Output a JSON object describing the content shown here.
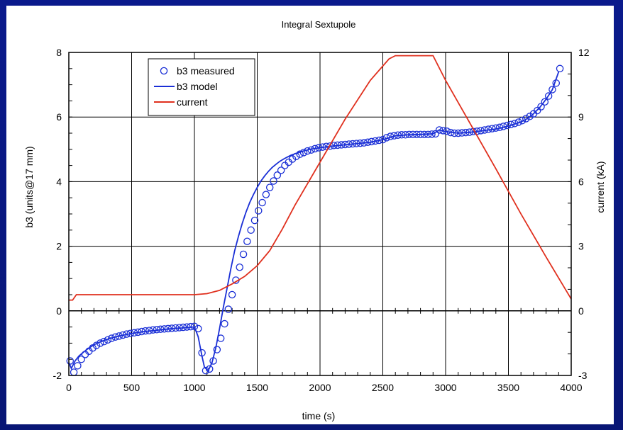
{
  "chart_data": {
    "type": "line",
    "title": "Integral Sextupole",
    "xlabel": "time (s)",
    "ylabel": "b3 (units@17 mm)",
    "y2label": "current (kA)",
    "xlim": [
      0,
      4000
    ],
    "ylim": [
      -2,
      8
    ],
    "y2lim": [
      -3,
      12
    ],
    "xticks": [
      0,
      500,
      1000,
      1500,
      2000,
      2500,
      3000,
      3500,
      4000
    ],
    "yticks": [
      -2,
      0,
      2,
      4,
      6,
      8
    ],
    "y2ticks": [
      -3,
      0,
      3,
      6,
      9,
      12
    ],
    "grid": true,
    "legend_position": "top-left",
    "series": [
      {
        "name": "b3 measured",
        "style": "markers",
        "color": "#1a2fd6",
        "x": [
          10,
          40,
          70,
          100,
          130,
          160,
          190,
          220,
          250,
          280,
          310,
          340,
          370,
          400,
          430,
          460,
          490,
          520,
          550,
          580,
          610,
          640,
          670,
          700,
          730,
          760,
          790,
          820,
          850,
          880,
          910,
          940,
          970,
          1000,
          1030,
          1060,
          1090,
          1120,
          1150,
          1180,
          1210,
          1240,
          1270,
          1300,
          1330,
          1360,
          1390,
          1420,
          1450,
          1480,
          1510,
          1540,
          1570,
          1600,
          1630,
          1660,
          1690,
          1720,
          1750,
          1780,
          1810,
          1840,
          1870,
          1900,
          1930,
          1960,
          1990,
          2020,
          2050,
          2080,
          2110,
          2140,
          2170,
          2200,
          2230,
          2260,
          2290,
          2320,
          2350,
          2380,
          2410,
          2440,
          2470,
          2500,
          2530,
          2560,
          2590,
          2620,
          2650,
          2680,
          2710,
          2740,
          2770,
          2800,
          2830,
          2860,
          2890,
          2920,
          2950,
          2980,
          3010,
          3040,
          3070,
          3100,
          3130,
          3160,
          3190,
          3220,
          3250,
          3280,
          3310,
          3340,
          3370,
          3400,
          3430,
          3460,
          3490,
          3520,
          3550,
          3580,
          3610,
          3640,
          3670,
          3700,
          3730,
          3760,
          3790,
          3820,
          3850,
          3880,
          3910
        ],
        "y": [
          -1.55,
          -1.9,
          -1.7,
          -1.5,
          -1.35,
          -1.25,
          -1.15,
          -1.07,
          -1.0,
          -0.95,
          -0.9,
          -0.85,
          -0.81,
          -0.78,
          -0.75,
          -0.72,
          -0.7,
          -0.68,
          -0.66,
          -0.64,
          -0.62,
          -0.61,
          -0.59,
          -0.58,
          -0.57,
          -0.56,
          -0.55,
          -0.54,
          -0.53,
          -0.52,
          -0.51,
          -0.5,
          -0.49,
          -0.48,
          -0.55,
          -1.3,
          -1.85,
          -1.8,
          -1.55,
          -1.2,
          -0.85,
          -0.4,
          0.05,
          0.5,
          0.95,
          1.35,
          1.75,
          2.15,
          2.5,
          2.8,
          3.1,
          3.35,
          3.6,
          3.82,
          4.02,
          4.2,
          4.35,
          4.5,
          4.6,
          4.7,
          4.78,
          4.85,
          4.9,
          4.95,
          4.98,
          5.02,
          5.05,
          5.07,
          5.09,
          5.1,
          5.12,
          5.13,
          5.14,
          5.15,
          5.16,
          5.17,
          5.18,
          5.19,
          5.2,
          5.22,
          5.24,
          5.26,
          5.28,
          5.3,
          5.36,
          5.4,
          5.42,
          5.44,
          5.45,
          5.45,
          5.46,
          5.46,
          5.46,
          5.46,
          5.46,
          5.46,
          5.47,
          5.48,
          5.6,
          5.58,
          5.56,
          5.52,
          5.5,
          5.5,
          5.51,
          5.52,
          5.53,
          5.55,
          5.56,
          5.58,
          5.6,
          5.62,
          5.64,
          5.66,
          5.68,
          5.71,
          5.74,
          5.77,
          5.8,
          5.84,
          5.89,
          5.95,
          6.02,
          6.1,
          6.2,
          6.32,
          6.47,
          6.65,
          6.85,
          7.05,
          7.5
        ]
      },
      {
        "name": "b3 model",
        "style": "line",
        "color": "#1a2fd6",
        "x": [
          0,
          20,
          50,
          80,
          110,
          150,
          200,
          250,
          300,
          350,
          400,
          450,
          500,
          550,
          600,
          650,
          700,
          750,
          800,
          850,
          900,
          950,
          1000,
          1030,
          1060,
          1080,
          1110,
          1140,
          1170,
          1200,
          1230,
          1260,
          1290,
          1320,
          1350,
          1380,
          1410,
          1440,
          1470,
          1500,
          1530,
          1560,
          1590,
          1620,
          1650,
          1680,
          1710,
          1740,
          1770,
          1800,
          1830,
          1860,
          1890,
          1920,
          1950,
          2000,
          2100,
          2200,
          2300,
          2400,
          2500,
          2600,
          2700,
          2800,
          2900,
          2950,
          3000,
          3100,
          3200,
          3300,
          3400,
          3500,
          3600,
          3650,
          3700,
          3750,
          3800,
          3850,
          3900
        ],
        "y": [
          -1.6,
          -1.78,
          -1.55,
          -1.4,
          -1.3,
          -1.18,
          -1.05,
          -0.96,
          -0.89,
          -0.83,
          -0.78,
          -0.74,
          -0.7,
          -0.67,
          -0.64,
          -0.62,
          -0.6,
          -0.58,
          -0.56,
          -0.54,
          -0.53,
          -0.51,
          -0.5,
          -0.8,
          -1.4,
          -1.75,
          -1.85,
          -1.6,
          -1.15,
          -0.55,
          0.1,
          0.7,
          1.3,
          1.85,
          2.3,
          2.7,
          3.05,
          3.35,
          3.6,
          3.82,
          4.02,
          4.18,
          4.32,
          4.44,
          4.54,
          4.63,
          4.7,
          4.76,
          4.82,
          4.86,
          4.9,
          4.94,
          4.97,
          5.0,
          5.02,
          5.05,
          5.1,
          5.14,
          5.18,
          5.22,
          5.3,
          5.42,
          5.45,
          5.46,
          5.48,
          5.6,
          5.55,
          5.5,
          5.53,
          5.58,
          5.63,
          5.72,
          5.85,
          5.95,
          6.1,
          6.3,
          6.55,
          6.85,
          7.4
        ]
      },
      {
        "name": "current",
        "style": "line",
        "color": "#e0301e",
        "axis": "y2",
        "x": [
          0,
          30,
          60,
          1000,
          1100,
          1200,
          1300,
          1400,
          1500,
          1600,
          1700,
          1800,
          2000,
          2200,
          2400,
          2550,
          2600,
          2900,
          3000,
          3200,
          3400,
          3600,
          3800,
          4000
        ],
        "y": [
          0.5,
          0.5,
          0.75,
          0.75,
          0.8,
          0.95,
          1.25,
          1.6,
          2.1,
          2.8,
          3.8,
          4.9,
          6.9,
          8.9,
          10.7,
          11.7,
          11.85,
          11.85,
          10.7,
          8.65,
          6.6,
          4.5,
          2.5,
          0.55
        ]
      }
    ]
  }
}
